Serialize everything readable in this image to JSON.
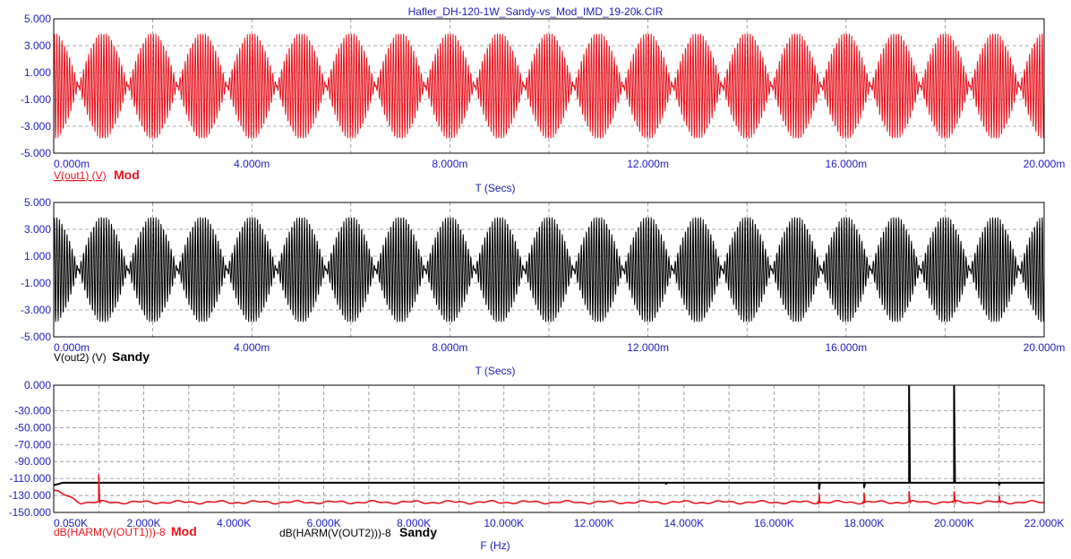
{
  "title": "Hafler_DH-120-1W_Sandy-vs_Mod_IMD_19-20k.CIR",
  "colors": {
    "mod": "#e8141e",
    "sandy": "#000000",
    "axis_text": "#1c1cbe",
    "grid": "#8a8a8a",
    "frame": "#000000"
  },
  "chart_data": [
    {
      "type": "line",
      "name": "mod-time-plot",
      "xlabel": "T (Secs)",
      "ylabel": "",
      "xlim": [
        0,
        20
      ],
      "ylim": [
        -5,
        5
      ],
      "x_ticks": [
        "0.000m",
        "4.000m",
        "8.000m",
        "12.000m",
        "16.000m",
        "20.000m"
      ],
      "y_ticks": [
        "5.000",
        "3.000",
        "1.000",
        "-1.000",
        "-3.000",
        "-5.000"
      ],
      "grid": true,
      "trace_label": "V(out1) (V)",
      "legend_name": "Mod",
      "signal": {
        "tones_hz": [
          19000,
          20000
        ],
        "amplitude_each": 2.0,
        "peak": 4.0,
        "beat_hz": 1000
      }
    },
    {
      "type": "line",
      "name": "sandy-time-plot",
      "xlabel": "T (Secs)",
      "ylabel": "",
      "xlim": [
        0,
        20
      ],
      "ylim": [
        -5,
        5
      ],
      "x_ticks": [
        "0.000m",
        "4.000m",
        "8.000m",
        "12.000m",
        "16.000m",
        "20.000m"
      ],
      "y_ticks": [
        "5.000",
        "3.000",
        "1.000",
        "-1.000",
        "-3.000",
        "-5.000"
      ],
      "grid": true,
      "trace_label": "V(out2) (V)",
      "legend_name": "Sandy",
      "signal": {
        "tones_hz": [
          19000,
          20000
        ],
        "amplitude_each": 2.0,
        "peak": 4.0,
        "beat_hz": 1000
      }
    },
    {
      "type": "line",
      "name": "spectrum-plot",
      "xlabel": "F (Hz)",
      "ylabel": "",
      "xlim": [
        0,
        22000
      ],
      "ylim": [
        -150,
        0
      ],
      "x_ticks": [
        "0.050K",
        "2.000K",
        "4.000K",
        "6.000K",
        "8.000K",
        "10.000K",
        "12.000K",
        "14.000K",
        "16.000K",
        "18.000K",
        "20.000K",
        "22.000K"
      ],
      "y_ticks": [
        "0.000",
        "-30.000",
        "-50.000",
        "-70.000",
        "-90.000",
        "-110.000",
        "-130.000",
        "-150.000"
      ],
      "grid": true,
      "series": [
        {
          "name": "Sandy",
          "trace_label": "dB(HARM(V(OUT2)))-8",
          "floor_db": -115,
          "spikes": [
            {
              "x": 13600,
              "y": -117
            },
            {
              "x": 17000,
              "y": -123
            },
            {
              "x": 18000,
              "y": -121
            },
            {
              "x": 19000,
              "y": 0
            },
            {
              "x": 20000,
              "y": 0
            },
            {
              "x": 21000,
              "y": -118
            }
          ]
        },
        {
          "name": "Mod",
          "trace_label": "dB(HARM(V(OUT1)))-8",
          "floor_db": -138,
          "spikes": [
            {
              "x": 1000,
              "y": -105
            },
            {
              "x": 17000,
              "y": -128
            },
            {
              "x": 18000,
              "y": -127
            },
            {
              "x": 19000,
              "y": -125
            },
            {
              "x": 20000,
              "y": -125
            },
            {
              "x": 21000,
              "y": -130
            }
          ]
        }
      ]
    }
  ]
}
